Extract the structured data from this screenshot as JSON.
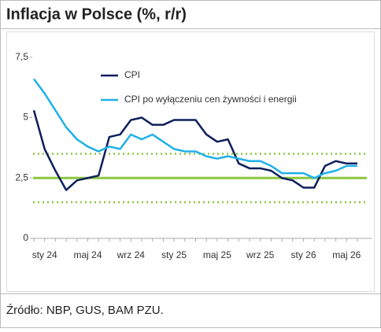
{
  "chart_data": {
    "type": "line",
    "title": "Inflacja w Polsce (%, r/r)",
    "source": "Źródło: NBP, GUS, BAM PZU.",
    "categories": [
      null,
      "sty 24",
      null,
      null,
      null,
      "maj 24",
      null,
      null,
      null,
      "wrz 24",
      null,
      null,
      null,
      "sty 25",
      null,
      null,
      null,
      "maj 25",
      null,
      null,
      null,
      "wrz 25",
      null,
      null,
      null,
      "sty 26",
      null,
      null,
      null,
      "maj 26",
      null
    ],
    "series": [
      {
        "name": "CPI",
        "color": "#0d1f5c",
        "values": [
          5.3,
          3.7,
          2.8,
          2.0,
          2.4,
          2.5,
          2.6,
          4.2,
          4.3,
          4.9,
          5.0,
          4.7,
          4.7,
          4.9,
          4.9,
          4.9,
          4.3,
          4.0,
          4.1,
          3.1,
          2.9,
          2.9,
          2.8,
          2.5,
          2.4,
          2.1,
          2.1,
          3.0,
          3.2,
          3.1,
          3.1
        ]
      },
      {
        "name": "CPI po wyłączeniu cen żywności i energii",
        "color": "#1fb0e8",
        "values": [
          6.6,
          6.0,
          5.3,
          4.6,
          4.1,
          3.8,
          3.6,
          3.8,
          3.7,
          4.3,
          4.1,
          4.3,
          4.0,
          3.7,
          3.6,
          3.6,
          3.4,
          3.3,
          3.4,
          3.3,
          3.2,
          3.2,
          3.0,
          2.7,
          2.7,
          2.7,
          2.5,
          2.7,
          2.8,
          3.0,
          3.0
        ]
      }
    ],
    "reference_lines": [
      {
        "value": 2.5,
        "style": "solid",
        "color": "#8cc63f"
      },
      {
        "value": 3.5,
        "style": "dotted",
        "color": "#8cc63f"
      },
      {
        "value": 1.5,
        "style": "dotted",
        "color": "#8cc63f"
      }
    ],
    "ylim": [
      0,
      8.5
    ],
    "yticks": [
      0,
      {
        "value": 2.5,
        "label": "2,5"
      },
      5,
      {
        "value": 7.5,
        "label": "7,5"
      }
    ],
    "legend": "top"
  }
}
